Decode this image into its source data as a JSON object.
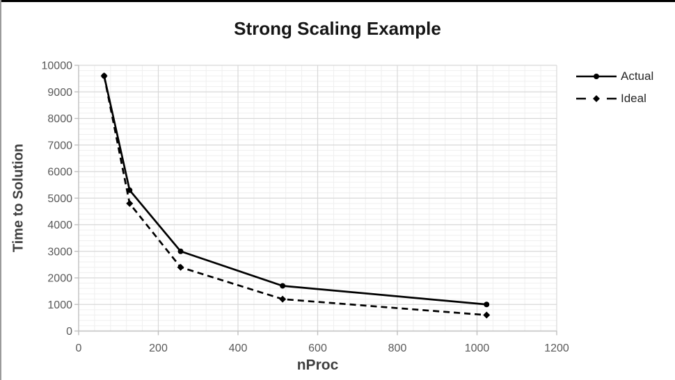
{
  "chart_data": {
    "type": "line",
    "title": "Strong Scaling Example",
    "xlabel": "nProc",
    "ylabel": "Time to Solution",
    "xlim": [
      0,
      1200
    ],
    "ylim": [
      0,
      10000
    ],
    "x_ticks": [
      0,
      200,
      400,
      600,
      800,
      1000,
      1200
    ],
    "y_ticks": [
      0,
      1000,
      2000,
      3000,
      4000,
      5000,
      6000,
      7000,
      8000,
      9000,
      10000
    ],
    "x_tick_step": 200,
    "y_tick_step": 1000,
    "x_minor_step": 40,
    "y_minor_step": 200,
    "grid": "major and minor gridlines, both axes",
    "legend_position": "right",
    "x": [
      64,
      128,
      256,
      512,
      1024
    ],
    "series": [
      {
        "name": "Actual",
        "values": [
          9600,
          5300,
          3000,
          1700,
          1000
        ],
        "line_style": "solid",
        "marker": "circle",
        "color": "#000000"
      },
      {
        "name": "Ideal",
        "values": [
          9600,
          4800,
          2400,
          1200,
          600
        ],
        "line_style": "dashed",
        "marker": "diamond",
        "color": "#000000"
      }
    ]
  },
  "styles": {
    "top_bar_color": "#000000",
    "left_edge_color": "#9b9b9b",
    "title_color": "#161616",
    "axis_title_color": "#404040",
    "tick_label_color": "#595959",
    "axis_line_color": "#bfbfbf",
    "grid_major_color": "#d8d8d8",
    "grid_minor_color": "#efefef",
    "legend_text_color": "#262626"
  }
}
